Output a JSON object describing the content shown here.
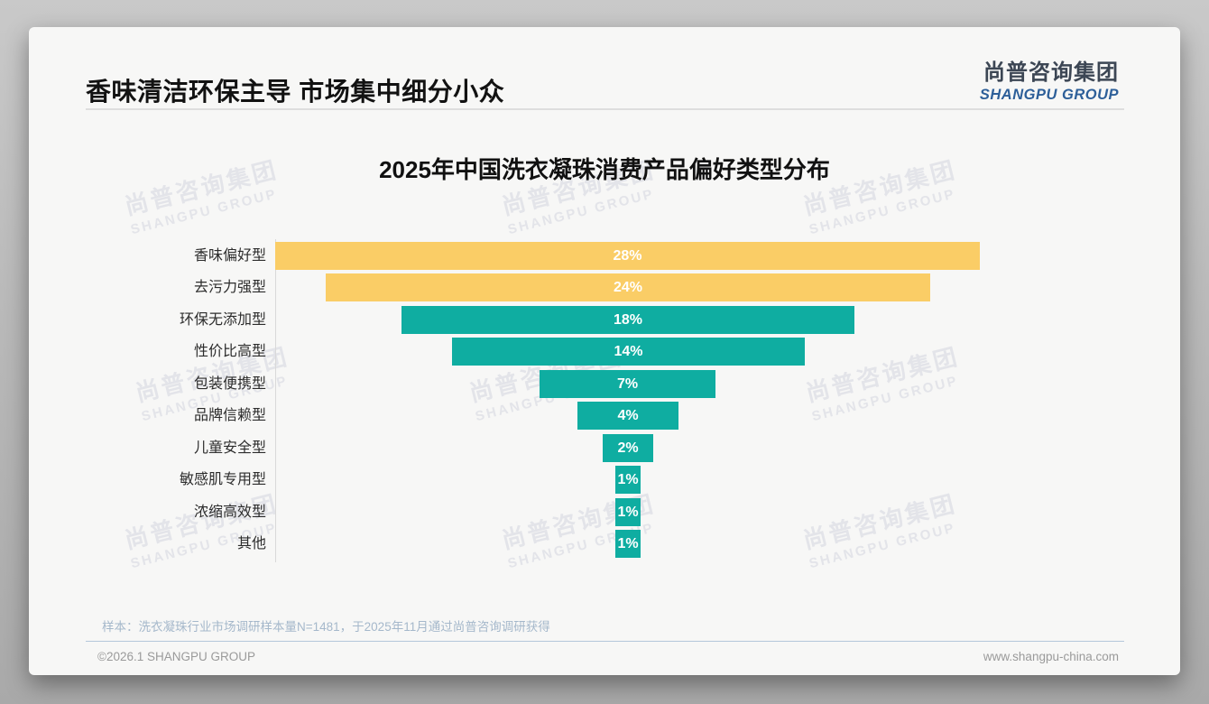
{
  "page": {
    "title": "香味清洁环保主导 市场集中细分小众",
    "logo": {
      "cn": "尚普咨询集团",
      "en": "SHANGPU GROUP"
    },
    "watermark": {
      "cn": "尚普咨询集团",
      "en": "SHANGPU GROUP"
    },
    "note": "样本：洗衣凝珠行业市场调研样本量N=1481，于2025年11月通过尚普咨询调研获得",
    "footer": {
      "left": "©2026.1 SHANGPU GROUP",
      "right": "www.shangpu-china.com"
    }
  },
  "chart_data": {
    "type": "bar",
    "orientation": "horizontal-centered-funnel",
    "title": "2025年中国洗衣凝珠消费产品偏好类型分布",
    "xlabel": "",
    "ylabel": "",
    "grid": false,
    "legend": "none",
    "categories": [
      "香味偏好型",
      "去污力强型",
      "环保无添加型",
      "性价比高型",
      "包装便携型",
      "品牌信赖型",
      "儿童安全型",
      "敏感肌专用型",
      "浓缩高效型",
      "其他"
    ],
    "values": [
      28,
      24,
      18,
      14,
      7,
      4,
      2,
      1,
      1,
      1
    ],
    "value_labels": [
      "28%",
      "24%",
      "18%",
      "14%",
      "7%",
      "4%",
      "2%",
      "1%",
      "1%",
      "1%"
    ],
    "unit": "%",
    "bar_colors": [
      "#facd66",
      "#facd66",
      "#0fada1",
      "#0fada1",
      "#0fada1",
      "#0fada1",
      "#0fada1",
      "#0fada1",
      "#0fada1",
      "#0fada1"
    ],
    "colors": {
      "highlight": "#facd66",
      "default": "#0fada1",
      "value_text": "#ffffff",
      "category_text": "#2c2c2c"
    }
  }
}
